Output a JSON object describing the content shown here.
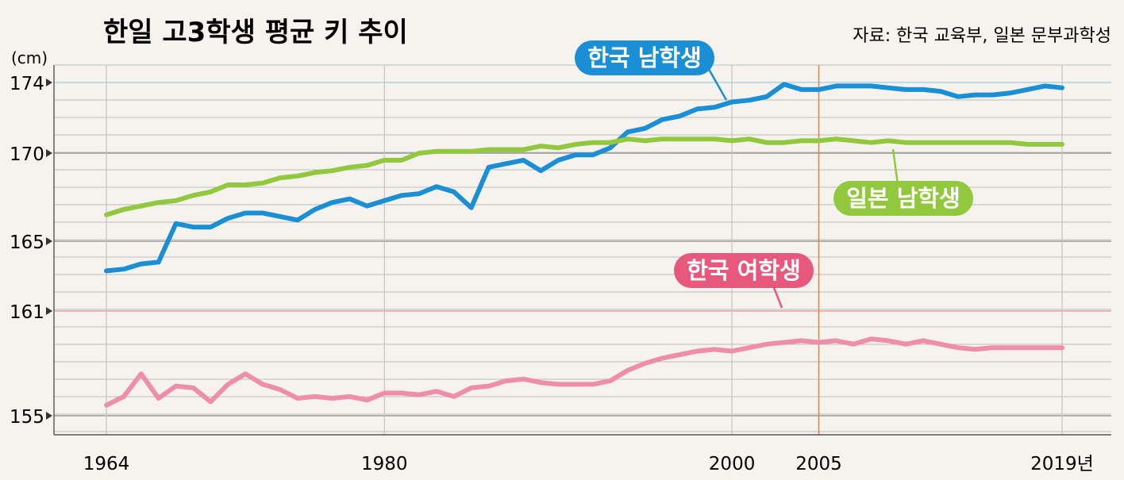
{
  "chart_data": {
    "type": "line",
    "title": "한일 고3학생 평균 키 추이",
    "source": "자료: 한국 교육부, 일본 문부과학성",
    "unit": "(cm)",
    "ylim": [
      154,
      175
    ],
    "xlim": [
      1964,
      2019
    ],
    "x_tick_labels": [
      "1964",
      "1980",
      "2000",
      "2005",
      "2019년"
    ],
    "x_ticks": [
      1964,
      1980,
      2000,
      2005,
      2019
    ],
    "y_ticks": [
      155,
      161,
      165,
      170,
      174
    ],
    "y_tick_labels": [
      "155",
      "161",
      "165",
      "170",
      "174"
    ],
    "highlight_x": 2005,
    "grid": true,
    "colors": {
      "korea_male": "#1a8fd6",
      "japan_male": "#92c83e",
      "korea_female": "#ee8eab",
      "highlight": "#e8873a"
    },
    "series": [
      {
        "name": "한국 남학생",
        "color": "#1a8fd6",
        "x": [
          1964,
          1965,
          1966,
          1967,
          1968,
          1969,
          1970,
          1971,
          1972,
          1973,
          1974,
          1975,
          1976,
          1977,
          1978,
          1979,
          1980,
          1981,
          1982,
          1983,
          1984,
          1985,
          1986,
          1987,
          1988,
          1989,
          1990,
          1991,
          1992,
          1993,
          1994,
          1995,
          1996,
          1997,
          1998,
          1999,
          2000,
          2001,
          2002,
          2003,
          2004,
          2005,
          2006,
          2007,
          2008,
          2009,
          2010,
          2011,
          2012,
          2013,
          2014,
          2015,
          2016,
          2017,
          2018,
          2019
        ],
        "values": [
          163.3,
          163.4,
          163.7,
          163.8,
          166.0,
          165.8,
          165.8,
          166.3,
          166.6,
          166.6,
          166.4,
          166.2,
          166.8,
          167.2,
          167.4,
          167.0,
          167.3,
          167.6,
          167.7,
          168.1,
          167.8,
          166.9,
          169.2,
          169.4,
          169.6,
          169.0,
          169.6,
          169.9,
          169.9,
          170.3,
          171.2,
          171.4,
          171.9,
          172.1,
          172.5,
          172.6,
          172.9,
          173.0,
          173.2,
          173.9,
          173.6,
          173.6,
          173.8,
          173.8,
          173.8,
          173.7,
          173.6,
          173.6,
          173.5,
          173.2,
          173.3,
          173.3,
          173.4,
          173.6,
          173.8,
          173.7
        ]
      },
      {
        "name": "일본 남학생",
        "color": "#92c83e",
        "x": [
          1964,
          1965,
          1966,
          1967,
          1968,
          1969,
          1970,
          1971,
          1972,
          1973,
          1974,
          1975,
          1976,
          1977,
          1978,
          1979,
          1980,
          1981,
          1982,
          1983,
          1984,
          1985,
          1986,
          1987,
          1988,
          1989,
          1990,
          1991,
          1992,
          1993,
          1994,
          1995,
          1996,
          1997,
          1998,
          1999,
          2000,
          2001,
          2002,
          2003,
          2004,
          2005,
          2006,
          2007,
          2008,
          2009,
          2010,
          2011,
          2012,
          2013,
          2014,
          2015,
          2016,
          2017,
          2018,
          2019
        ],
        "values": [
          166.5,
          166.8,
          167.0,
          167.2,
          167.3,
          167.6,
          167.8,
          168.2,
          168.2,
          168.3,
          168.6,
          168.7,
          168.9,
          169.0,
          169.2,
          169.3,
          169.6,
          169.6,
          170.0,
          170.1,
          170.1,
          170.1,
          170.2,
          170.2,
          170.2,
          170.4,
          170.3,
          170.5,
          170.6,
          170.6,
          170.8,
          170.7,
          170.8,
          170.8,
          170.8,
          170.8,
          170.7,
          170.8,
          170.6,
          170.6,
          170.7,
          170.7,
          170.8,
          170.7,
          170.6,
          170.7,
          170.6,
          170.6,
          170.6,
          170.6,
          170.6,
          170.6,
          170.6,
          170.5,
          170.5,
          170.5
        ]
      },
      {
        "name": "한국 여학생",
        "color": "#ee8eab",
        "x": [
          1964,
          1965,
          1966,
          1967,
          1968,
          1969,
          1970,
          1971,
          1972,
          1973,
          1974,
          1975,
          1976,
          1977,
          1978,
          1979,
          1980,
          1981,
          1982,
          1983,
          1984,
          1985,
          1986,
          1987,
          1988,
          1989,
          1990,
          1991,
          1992,
          1993,
          1994,
          1995,
          1996,
          1997,
          1998,
          1999,
          2000,
          2001,
          2002,
          2003,
          2004,
          2005,
          2006,
          2007,
          2008,
          2009,
          2010,
          2011,
          2012,
          2013,
          2014,
          2015,
          2016,
          2017,
          2018,
          2019
        ],
        "values": [
          155.6,
          156.1,
          157.4,
          156.0,
          156.7,
          156.6,
          155.8,
          156.8,
          157.4,
          156.8,
          156.5,
          156.0,
          156.1,
          156.0,
          156.1,
          155.9,
          156.3,
          156.3,
          156.2,
          156.4,
          156.1,
          156.6,
          156.7,
          157.0,
          157.1,
          156.9,
          156.8,
          156.8,
          156.8,
          157.0,
          157.6,
          158.0,
          158.3,
          158.5,
          158.7,
          158.8,
          158.7,
          158.9,
          159.1,
          159.2,
          159.3,
          159.2,
          159.3,
          159.1,
          159.4,
          159.3,
          159.1,
          159.3,
          159.1,
          158.9,
          158.8,
          158.9,
          158.9,
          158.9,
          158.9,
          158.9
        ]
      }
    ],
    "labels": [
      {
        "text": "한국 남학생",
        "series": 0,
        "color": "#1a8fd6"
      },
      {
        "text": "일본 남학생",
        "series": 1,
        "color": "#92c83e"
      },
      {
        "text": "한국 여학생",
        "series": 2,
        "color": "#e8587d"
      }
    ]
  }
}
